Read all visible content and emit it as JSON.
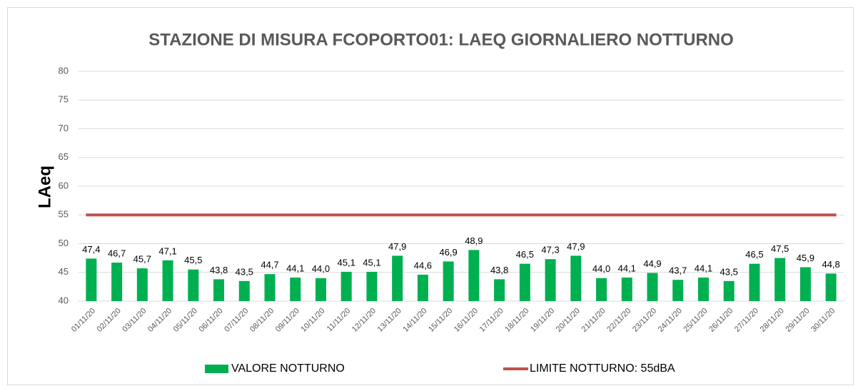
{
  "chart_data": {
    "type": "bar",
    "title": "STAZIONE DI MISURA FCOPORTO01: LAEQ GIORNALIERO NOTTURNO",
    "y_label": "LAeq",
    "categories": [
      "01/11/20",
      "02/11/20",
      "03/11/20",
      "04/11/20",
      "05/11/20",
      "06/11/20",
      "07/11/20",
      "08/11/20",
      "09/11/20",
      "10/11/20",
      "11/11/20",
      "12/11/20",
      "13/11/20",
      "14/11/20",
      "15/11/20",
      "16/11/20",
      "17/11/20",
      "18/11/20",
      "19/11/20",
      "20/11/20",
      "21/11/20",
      "22/11/20",
      "23/11/20",
      "24/11/20",
      "25/11/20",
      "26/11/20",
      "27/11/20",
      "28/11/20",
      "29/11/20",
      "30/11/20"
    ],
    "series": [
      {
        "name": "VALORE NOTTURNO",
        "type": "bar",
        "color": "#00b050",
        "values": [
          47.4,
          46.7,
          45.7,
          47.1,
          45.5,
          43.8,
          43.5,
          44.7,
          44.1,
          44.0,
          45.1,
          45.1,
          47.9,
          44.6,
          46.9,
          48.9,
          43.8,
          46.5,
          47.3,
          47.9,
          44.0,
          44.1,
          44.9,
          43.7,
          44.1,
          43.5,
          46.5,
          47.5,
          45.9,
          44.8
        ],
        "value_labels": [
          "47,4",
          "46,7",
          "45,7",
          "47,1",
          "45,5",
          "43,8",
          "43,5",
          "44,7",
          "44,1",
          "44,0",
          "45,1",
          "45,1",
          "47,9",
          "44,6",
          "46,9",
          "48,9",
          "43,8",
          "46,5",
          "47,3",
          "47,9",
          "44,0",
          "44,1",
          "44,9",
          "43,7",
          "44,1",
          "43,5",
          "46,5",
          "47,5",
          "45,9",
          "44,8"
        ]
      },
      {
        "name": "LIMITE NOTTURNO: 55dBA",
        "type": "line",
        "color": "#c0504d",
        "values": [
          55,
          55,
          55,
          55,
          55,
          55,
          55,
          55,
          55,
          55,
          55,
          55,
          55,
          55,
          55,
          55,
          55,
          55,
          55,
          55,
          55,
          55,
          55,
          55,
          55,
          55,
          55,
          55,
          55,
          55
        ]
      }
    ],
    "ylim": [
      40,
      80
    ],
    "yticks": [
      40,
      45,
      50,
      55,
      60,
      65,
      70,
      75,
      80
    ],
    "grid": true,
    "legend": "bottom"
  }
}
